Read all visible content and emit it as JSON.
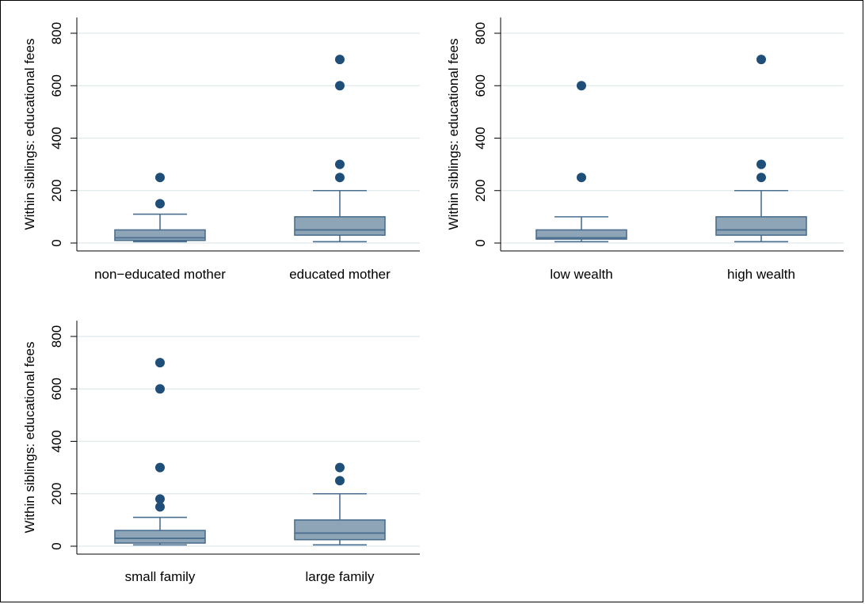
{
  "chart_data": [
    {
      "type": "box",
      "ylabel": "Within siblings: educational fees",
      "ylim": [
        -30,
        860
      ],
      "yticks": [
        "0",
        "200",
        "400",
        "600",
        "800"
      ],
      "grid": true,
      "color": "#4a6f8f",
      "box_fill": "#8ea4b7",
      "categories": [
        "non−educated mother",
        "educated mother"
      ],
      "boxes": [
        {
          "category": "non−educated mother",
          "whisker_low": 5,
          "q1": 10,
          "median": 20,
          "q3": 50,
          "whisker_high": 110,
          "outliers": [
            150,
            250
          ]
        },
        {
          "category": "educated mother",
          "whisker_low": 5,
          "q1": 30,
          "median": 50,
          "q3": 100,
          "whisker_high": 200,
          "outliers": [
            250,
            300,
            600,
            700
          ]
        }
      ]
    },
    {
      "type": "box",
      "ylabel": "Within siblings: educational fees",
      "ylim": [
        -30,
        860
      ],
      "yticks": [
        "0",
        "200",
        "400",
        "600",
        "800"
      ],
      "grid": true,
      "color": "#4a6f8f",
      "box_fill": "#8ea4b7",
      "categories": [
        "low wealth",
        "high wealth"
      ],
      "boxes": [
        {
          "category": "low wealth",
          "whisker_low": 5,
          "q1": 15,
          "median": 20,
          "q3": 50,
          "whisker_high": 100,
          "outliers": [
            250,
            600
          ]
        },
        {
          "category": "high wealth",
          "whisker_low": 5,
          "q1": 30,
          "median": 50,
          "q3": 100,
          "whisker_high": 200,
          "outliers": [
            250,
            300,
            700
          ]
        }
      ]
    },
    {
      "type": "box",
      "ylabel": "Within siblings: educational fees",
      "ylim": [
        -30,
        860
      ],
      "yticks": [
        "0",
        "200",
        "400",
        "600",
        "800"
      ],
      "grid": true,
      "color": "#4a6f8f",
      "box_fill": "#8ea4b7",
      "categories": [
        "small family",
        "large family"
      ],
      "boxes": [
        {
          "category": "small family",
          "whisker_low": 5,
          "q1": 12,
          "median": 30,
          "q3": 60,
          "whisker_high": 110,
          "outliers": [
            150,
            180,
            300,
            600,
            700
          ]
        },
        {
          "category": "large family",
          "whisker_low": 5,
          "q1": 25,
          "median": 50,
          "q3": 100,
          "whisker_high": 200,
          "outliers": [
            250,
            300
          ]
        }
      ]
    }
  ]
}
